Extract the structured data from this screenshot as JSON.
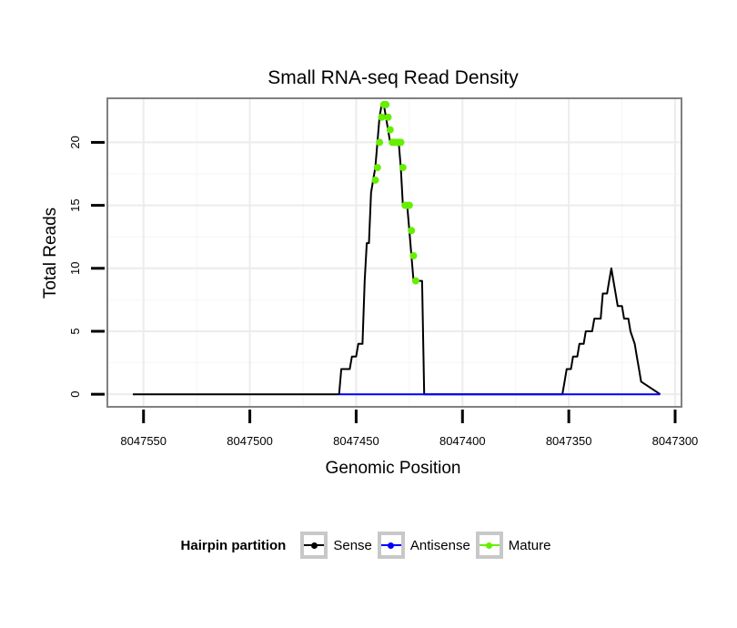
{
  "chart_data": {
    "type": "line",
    "title": "Small RNA-seq Read Density",
    "xlabel": "Genomic Position",
    "ylabel": "Total Reads",
    "xlim": [
      8047567,
      8047297
    ],
    "ylim": [
      -1,
      23.5
    ],
    "x_ticks": [
      8047550,
      8047500,
      8047450,
      8047400,
      8047350,
      8047300
    ],
    "x_tick_labels": [
      "8047550",
      "8047500",
      "8047450",
      "8047400",
      "8047350",
      "8047300"
    ],
    "y_ticks": [
      0,
      5,
      10,
      15,
      20
    ],
    "y_tick_labels": [
      "0",
      "5",
      "10",
      "15",
      "20"
    ],
    "grid": true,
    "legend": {
      "title": "Hairpin partition",
      "position": "bottom",
      "entries": [
        {
          "name": "Sense",
          "color": "#000000"
        },
        {
          "name": "Antisense",
          "color": "#0000ff"
        },
        {
          "name": "Mature",
          "color": "#66ee00"
        }
      ]
    },
    "series": [
      {
        "name": "Sense",
        "color": "#000000",
        "x": [
          8047555,
          8047458,
          8047457,
          8047453,
          8047452,
          8047450,
          8047449,
          8047447,
          8047446,
          8047445,
          8047444,
          8047443,
          8047442,
          8047441,
          8047440,
          8047439,
          8047438,
          8047437,
          8047436,
          8047435,
          8047434,
          8047433,
          8047432,
          8047431,
          8047430,
          8047429,
          8047428,
          8047427,
          8047426,
          8047425,
          8047424,
          8047423,
          8047422,
          8047421,
          8047420,
          8047419,
          8047418,
          8047417,
          8047353,
          8047352,
          8047351,
          8047349,
          8047348,
          8047346,
          8047345,
          8047343,
          8047342,
          8047339,
          8047338,
          8047335,
          8047334,
          8047333,
          8047332,
          8047331,
          8047330,
          8047329,
          8047328,
          8047327,
          8047325,
          8047324,
          8047322,
          8047321,
          8047319,
          8047318,
          8047317,
          8047316,
          8047307
        ],
        "y": [
          0,
          0,
          2,
          2,
          3,
          3,
          4,
          4,
          9,
          12,
          12,
          16,
          17,
          18,
          20,
          22,
          23,
          23,
          22,
          21,
          20,
          20,
          20,
          20,
          20,
          18,
          15,
          15,
          15,
          13,
          11,
          9,
          9,
          9,
          9,
          9,
          0,
          0,
          0,
          1,
          2,
          2,
          3,
          3,
          4,
          4,
          5,
          5,
          6,
          6,
          8,
          8,
          8,
          9,
          10,
          9,
          8,
          7,
          7,
          6,
          6,
          5,
          4,
          3,
          2,
          1,
          0
        ]
      },
      {
        "name": "Antisense",
        "color": "#0000ff",
        "x": [
          8047458,
          8047307
        ],
        "y": [
          0,
          0
        ]
      },
      {
        "name": "Mature",
        "color": "#66ee00",
        "x": [
          8047441,
          8047440,
          8047439,
          8047438,
          8047437,
          8047436,
          8047435,
          8047434,
          8047433,
          8047432,
          8047431,
          8047430,
          8047429,
          8047428,
          8047427,
          8047426,
          8047425,
          8047424,
          8047423,
          8047422
        ],
        "y": [
          17,
          18,
          20,
          22,
          23,
          23,
          22,
          21,
          20,
          20,
          20,
          20,
          20,
          18,
          15,
          15,
          15,
          13,
          11,
          9
        ]
      }
    ]
  }
}
